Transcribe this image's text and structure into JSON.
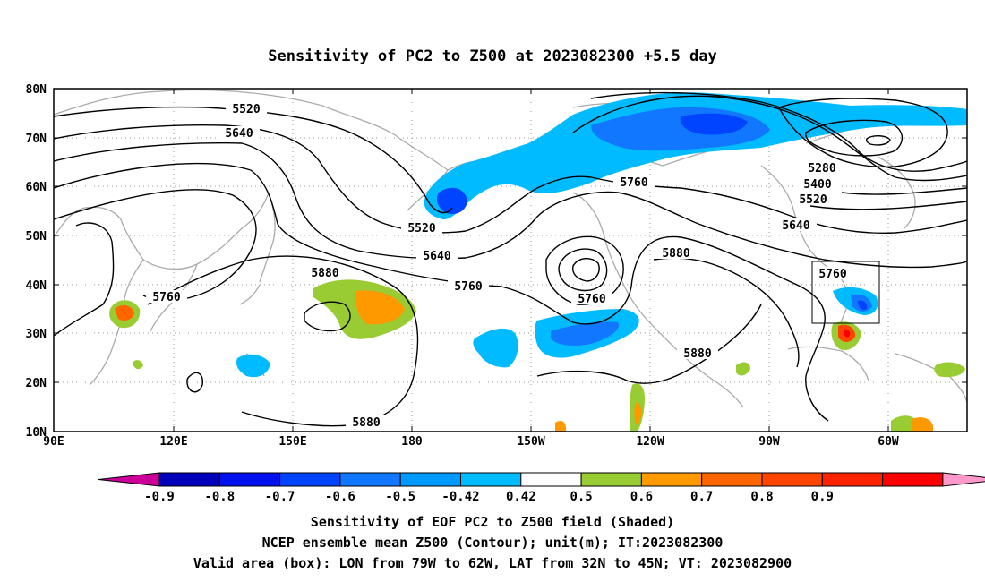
{
  "title": "Sensitivity of PC2 to Z500 at 2023082300 +5.5 day",
  "lat_labels": [
    "80N",
    "70N",
    "60N",
    "50N",
    "40N",
    "30N",
    "20N",
    "10N"
  ],
  "lon_labels": [
    "90E",
    "120E",
    "150E",
    "180",
    "150W",
    "120W",
    "90W",
    "60W"
  ],
  "contour_labels": {
    "c5520_a": "5520",
    "c5640_a": "5640",
    "c5520_b": "5520",
    "c5640_b": "5640",
    "c5760_a": "5760",
    "c5880_a": "5880",
    "c5760_b": "5760",
    "c5760_c": "5760",
    "c5760_d": "5760",
    "c5880_b": "5880",
    "c5880_c": "5880",
    "c5880_d": "5880",
    "c5280": "5280",
    "c5400": "5400",
    "c5520_c": "5520",
    "c5640_c": "5640",
    "c5760_e": "5760"
  },
  "colorbar": {
    "colors": [
      "#ff99cc",
      "#cc0099",
      "#0000bb",
      "#0011ee",
      "#0044ff",
      "#1177ff",
      "#0099ff",
      "#00bbff",
      "#ffffff",
      "#99cc33",
      "#ff9900",
      "#ff6600",
      "#ff4400",
      "#ff2200",
      "#ff0000"
    ],
    "labels": [
      "-0.9",
      "-0.8",
      "-0.7",
      "-0.6",
      "-0.5",
      "-0.42",
      "0.42",
      "0.5",
      "0.6",
      "0.7",
      "0.8",
      "0.9"
    ]
  },
  "captions": {
    "line1": "Sensitivity of EOF PC2 to Z500 field (Shaded)",
    "line2": "NCEP ensemble mean Z500 (Contour); unit(m); IT:2023082300",
    "line3": "Valid area (box): LON from 79W to 62W, LAT from 32N to 45N; VT: 2023082900"
  }
}
